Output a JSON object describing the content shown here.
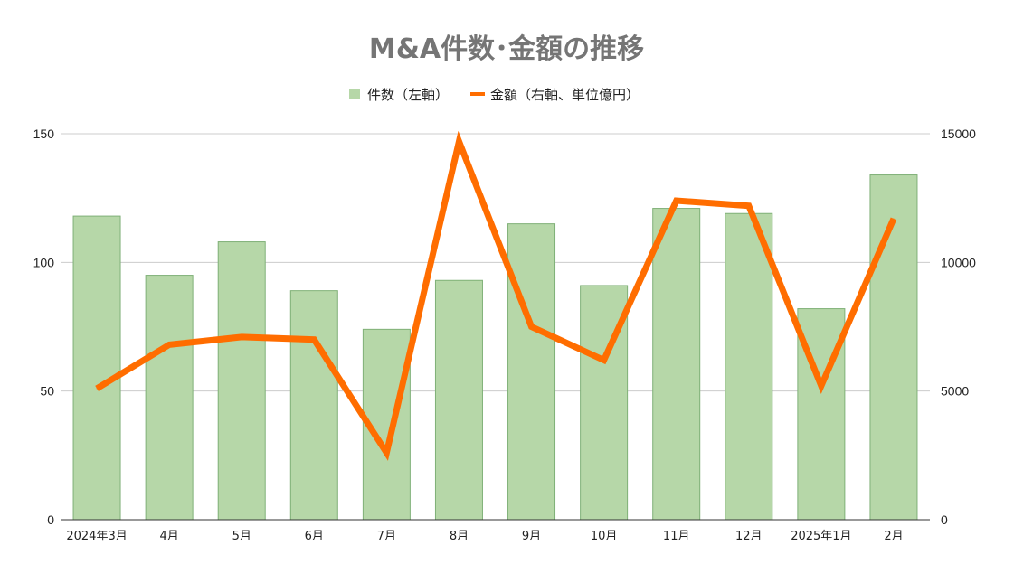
{
  "chart_data": {
    "type": "bar",
    "title": "M&A件数･金額の推移",
    "categories": [
      "2024年3月",
      "4月",
      "5月",
      "6月",
      "7月",
      "8月",
      "9月",
      "10月",
      "11月",
      "12月",
      "2025年1月",
      "2月"
    ],
    "series": [
      {
        "name": "件数（左軸）",
        "type": "bar",
        "axis": "left",
        "color": "#b6d7a8",
        "stroke": "#7fb077",
        "values": [
          118,
          95,
          108,
          89,
          74,
          93,
          115,
          91,
          121,
          119,
          82,
          134
        ]
      },
      {
        "name": "金額（右軸、単位億円）",
        "type": "line",
        "axis": "right",
        "color": "#ff6d00",
        "values": [
          5100,
          6800,
          7100,
          7000,
          2600,
          14700,
          7500,
          6200,
          12400,
          12200,
          5200,
          11700
        ]
      }
    ],
    "y_left": {
      "min": 0,
      "max": 150,
      "ticks": [
        "0",
        "50",
        "100",
        "150"
      ]
    },
    "y_right": {
      "min": 0,
      "max": 15000,
      "ticks": [
        "0",
        "5000",
        "10000",
        "15000"
      ]
    },
    "grid": true,
    "legend_position": "top"
  }
}
